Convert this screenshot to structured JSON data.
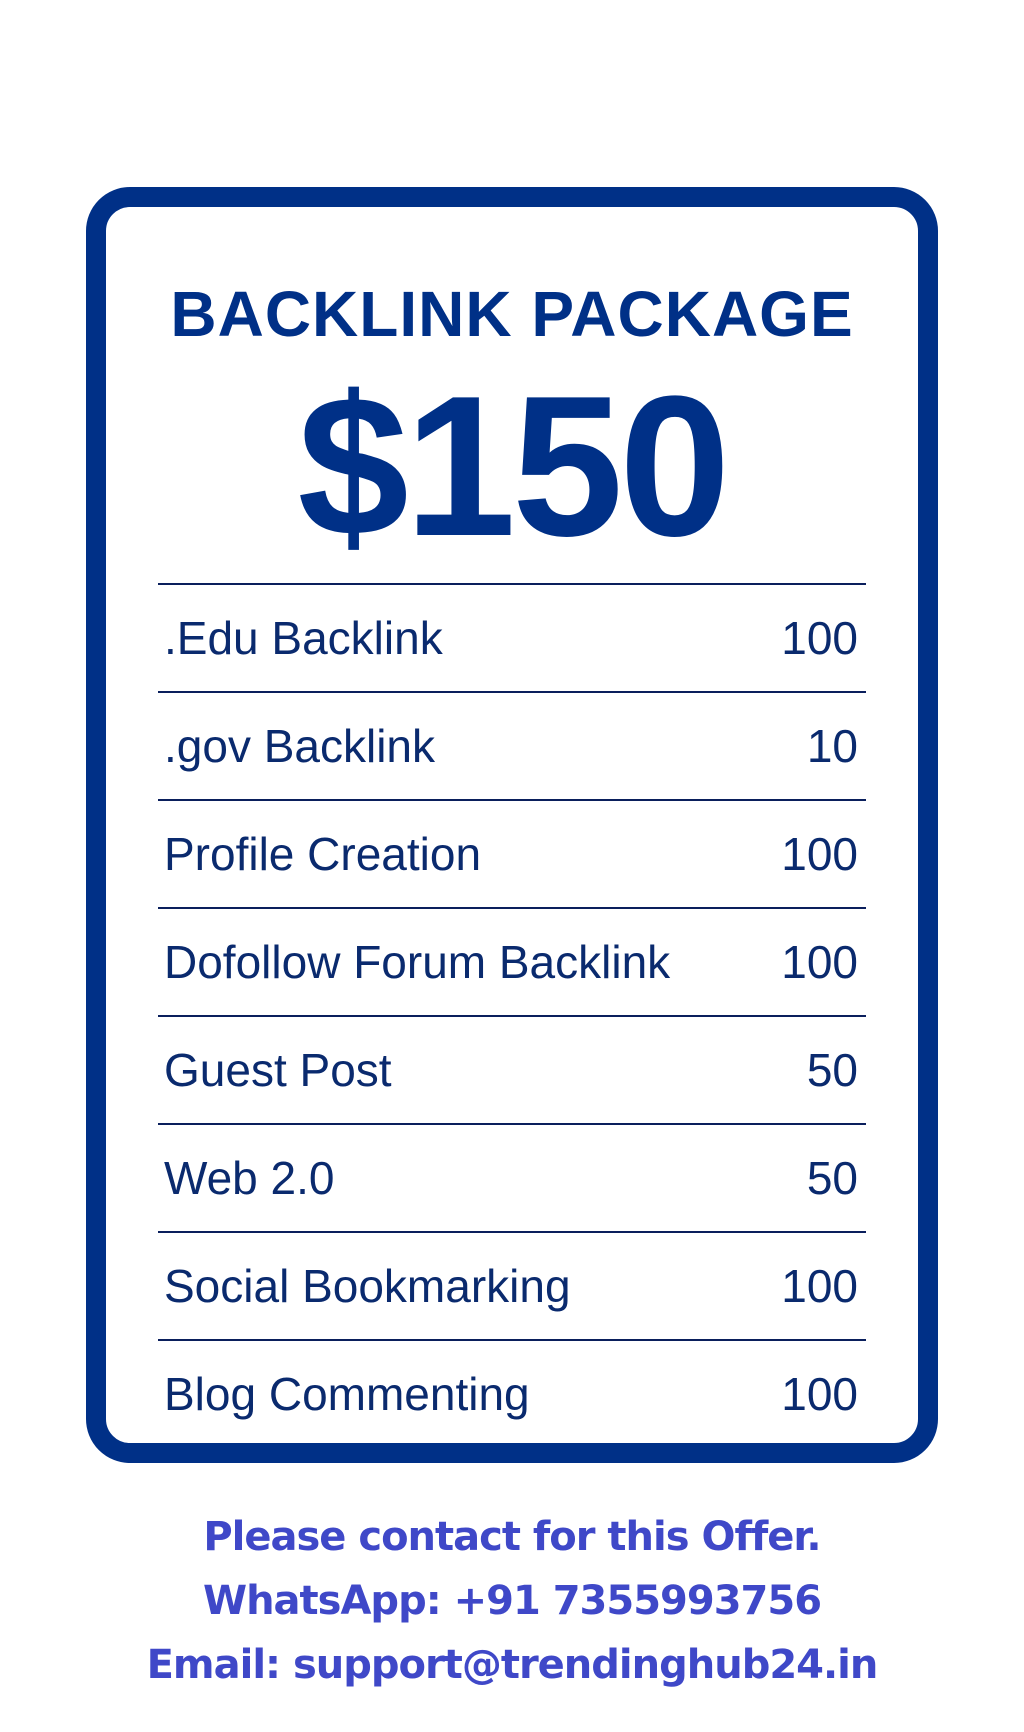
{
  "card": {
    "title": "BACKLINK PACKAGE",
    "price": "$150",
    "items": [
      {
        "label": ".Edu Backlink",
        "qty": "100"
      },
      {
        "label": ".gov Backlink",
        "qty": "10"
      },
      {
        "label": "Profile Creation",
        "qty": "100"
      },
      {
        "label": "Dofollow Forum Backlink",
        "qty": "100"
      },
      {
        "label": "Guest Post",
        "qty": "50"
      },
      {
        "label": "Web 2.0",
        "qty": "50"
      },
      {
        "label": "Social Bookmarking",
        "qty": "100"
      },
      {
        "label": "Blog Commenting",
        "qty": "100"
      }
    ]
  },
  "footer": {
    "line1": "Please contact for this Offer.",
    "line2": "WhatsApp: +91 7355993756",
    "line3": "Email: support@trendinghub24.in"
  },
  "colors": {
    "card_border": "#003087",
    "text": "#0a2a6e",
    "footer_text": "#3f48c8"
  }
}
